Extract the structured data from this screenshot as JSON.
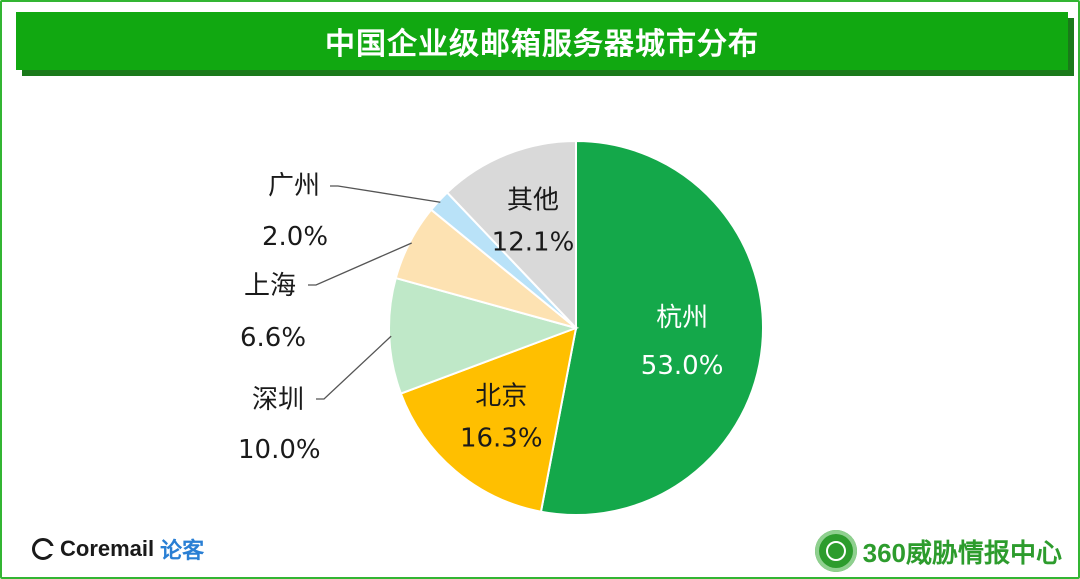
{
  "title": "中国企业级邮箱服务器城市分布",
  "chart_data": {
    "type": "pie",
    "title": "中国企业级邮箱服务器城市分布",
    "start": "12 o'clock, clockwise",
    "slices": [
      {
        "label": "杭州",
        "value": 53.0,
        "display": "53.0%",
        "color": "#14a84a",
        "text_color": "#ffffff",
        "placement": "inside"
      },
      {
        "label": "北京",
        "value": 16.3,
        "display": "16.3%",
        "color": "#ffbf00",
        "text_color": "#1a1a1a",
        "placement": "inside"
      },
      {
        "label": "深圳",
        "value": 10.0,
        "display": "10.0%",
        "color": "#bfe8c8",
        "text_color": "#1a1a1a",
        "placement": "outside"
      },
      {
        "label": "上海",
        "value": 6.6,
        "display": "6.6%",
        "color": "#fde2b2",
        "text_color": "#1a1a1a",
        "placement": "outside"
      },
      {
        "label": "广州",
        "value": 2.0,
        "display": "2.0%",
        "color": "#b9e2f8",
        "text_color": "#1a1a1a",
        "placement": "outside"
      },
      {
        "label": "其他",
        "value": 12.1,
        "display": "12.1%",
        "color": "#d9d9d9",
        "text_color": "#1a1a1a",
        "placement": "inside"
      }
    ]
  },
  "footer": {
    "left_brand": "Coremail",
    "left_sub": "论客",
    "right_brand": "360威胁情报中心"
  }
}
